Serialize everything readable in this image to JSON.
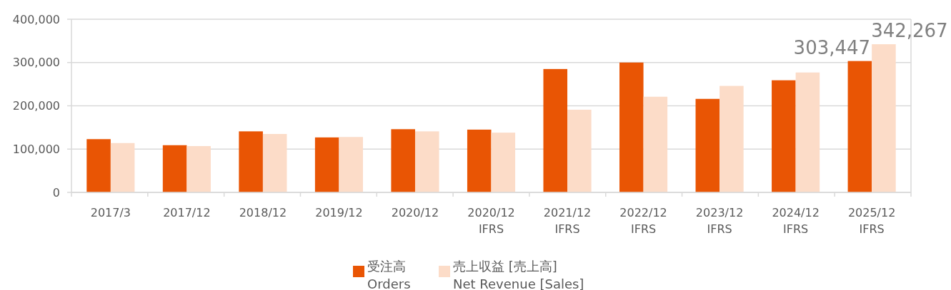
{
  "chart_data": {
    "type": "bar",
    "categories": [
      "2017/3",
      "2017/12",
      "2018/12",
      "2019/12",
      "2020/12",
      "2020/12\nIFRS",
      "2021/12\nIFRS",
      "2022/12\nIFRS",
      "2023/12\nIFRS",
      "2024/12\nIFRS",
      "2025/12\nIFRS"
    ],
    "series": [
      {
        "name": "受注高\nOrders",
        "color": "#e95504",
        "values": [
          123000,
          109000,
          141000,
          127000,
          146000,
          145000,
          285000,
          300000,
          216000,
          259000,
          303447
        ],
        "value_labels": [
          null,
          null,
          null,
          null,
          null,
          null,
          null,
          null,
          null,
          null,
          "303,447"
        ]
      },
      {
        "name": "売上収益 [売上高]\nNet Revenue [Sales]",
        "color": "#fcdcc8",
        "values": [
          114000,
          107000,
          135000,
          128000,
          141000,
          138000,
          191000,
          221000,
          246000,
          277000,
          342267
        ],
        "value_labels": [
          null,
          null,
          null,
          null,
          null,
          null,
          null,
          null,
          null,
          null,
          "342,267"
        ]
      }
    ],
    "ylim": [
      0,
      400000
    ],
    "yticks": [
      {
        "value": 0,
        "label": "0"
      },
      {
        "value": 100000,
        "label": "100,000"
      },
      {
        "value": 200000,
        "label": "200,000"
      },
      {
        "value": 300000,
        "label": "300,000"
      },
      {
        "value": 400000,
        "label": "400,000"
      }
    ],
    "grid": "y",
    "legend": "bottom"
  }
}
